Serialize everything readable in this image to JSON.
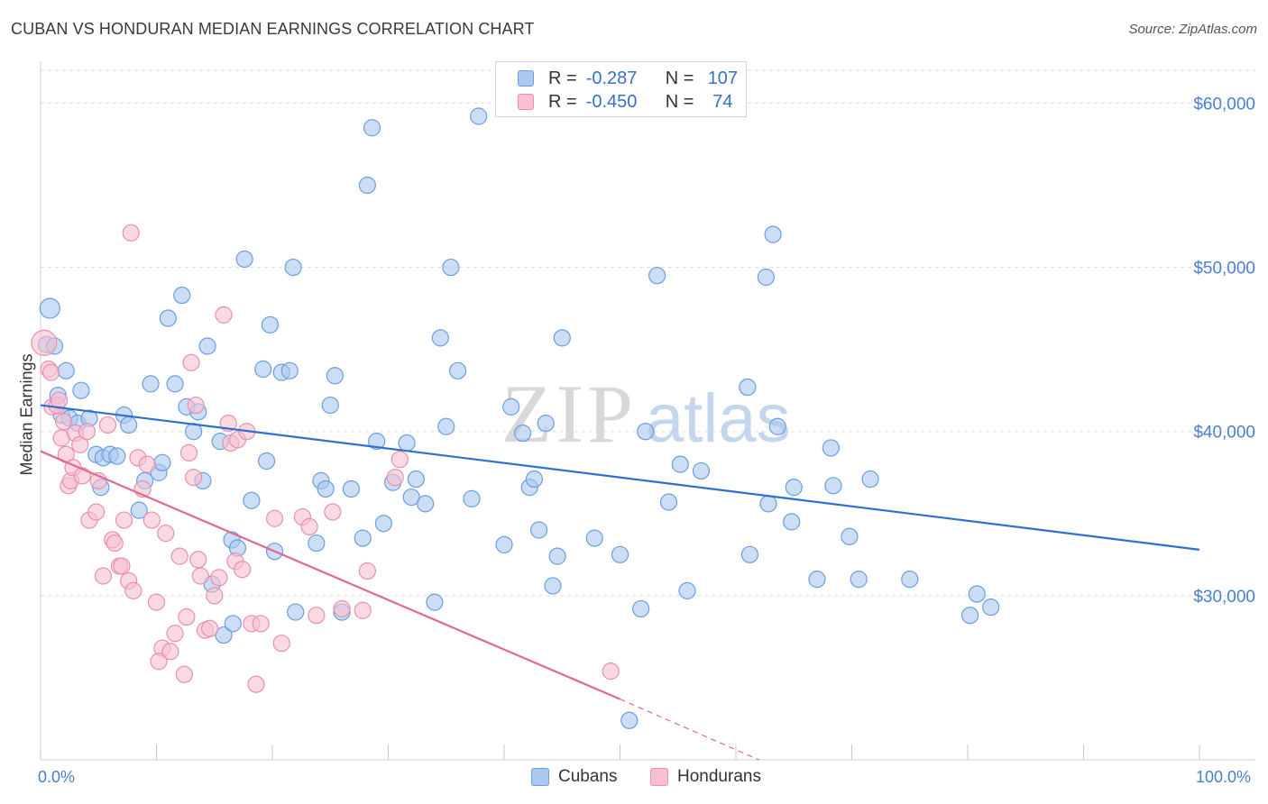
{
  "title": "CUBAN VS HONDURAN MEDIAN EARNINGS CORRELATION CHART",
  "source": "Source: ZipAtlas.com",
  "watermark": {
    "zip": "ZIP",
    "atlas": "atlas"
  },
  "legend_top": {
    "rows": [
      {
        "r_label": "R =",
        "r_value": "-0.287",
        "n_label": "N =",
        "n_value": "107"
      },
      {
        "r_label": "R =",
        "r_value": "-0.450",
        "n_label": "N =",
        "n_value": "74"
      }
    ]
  },
  "colors": {
    "cubans_fill": "#aac8f0",
    "cubans_stroke": "#6a9ee0",
    "cubans_line": "#2f6fd0",
    "hondurans_fill": "#f8c0d0",
    "hondurans_stroke": "#e890ae",
    "hondurans_line": "#e06892",
    "axis_text": "#4a7fd0",
    "grid": "#dddddd"
  },
  "chart_data": {
    "type": "scatter",
    "title": "CUBAN VS HONDURAN MEDIAN EARNINGS CORRELATION CHART",
    "xlabel": "",
    "ylabel": "Median Earnings",
    "xlim": [
      0,
      100
    ],
    "ylim": [
      20000,
      62000
    ],
    "x_tick_labels": [
      "0.0%",
      "100.0%"
    ],
    "y_ticks": [
      30000,
      40000,
      50000,
      60000
    ],
    "y_tick_labels": [
      "$30,000",
      "$40,000",
      "$50,000",
      "$60,000"
    ],
    "grid": true,
    "legend_position": "bottom-center",
    "series": [
      {
        "name": "Cubans",
        "r": -0.287,
        "n": 107,
        "trend": {
          "x": [
            0,
            100
          ],
          "y": [
            41600,
            32800
          ]
        },
        "points": [
          [
            0.5,
            45300
          ],
          [
            0.8,
            47500
          ],
          [
            1.2,
            45200
          ],
          [
            1.5,
            42200
          ],
          [
            2.2,
            43700
          ],
          [
            1.8,
            41000
          ],
          [
            2.5,
            40800
          ],
          [
            3.5,
            42500
          ],
          [
            3.2,
            40500
          ],
          [
            4.2,
            40800
          ],
          [
            4.8,
            38600
          ],
          [
            5.4,
            38400
          ],
          [
            6.0,
            38600
          ],
          [
            6.6,
            38500
          ],
          [
            5.2,
            36600
          ],
          [
            7.2,
            41000
          ],
          [
            7.6,
            40400
          ],
          [
            8.5,
            35200
          ],
          [
            9.0,
            37000
          ],
          [
            9.5,
            42900
          ],
          [
            10.2,
            37500
          ],
          [
            10.5,
            38100
          ],
          [
            11.0,
            46900
          ],
          [
            11.6,
            42900
          ],
          [
            12.2,
            48300
          ],
          [
            12.6,
            41500
          ],
          [
            13.2,
            40000
          ],
          [
            13.6,
            41200
          ],
          [
            14.0,
            37000
          ],
          [
            14.4,
            45200
          ],
          [
            14.8,
            30700
          ],
          [
            15.5,
            39400
          ],
          [
            15.8,
            27600
          ],
          [
            16.5,
            33400
          ],
          [
            16.6,
            28300
          ],
          [
            17.0,
            32900
          ],
          [
            17.6,
            50500
          ],
          [
            18.2,
            35800
          ],
          [
            19.2,
            43800
          ],
          [
            19.5,
            38200
          ],
          [
            19.8,
            46500
          ],
          [
            20.2,
            32700
          ],
          [
            20.8,
            43600
          ],
          [
            21.5,
            43700
          ],
          [
            21.8,
            50000
          ],
          [
            22.0,
            29000
          ],
          [
            23.8,
            33200
          ],
          [
            24.2,
            37000
          ],
          [
            24.6,
            36500
          ],
          [
            25.0,
            41600
          ],
          [
            25.4,
            43400
          ],
          [
            26.0,
            29000
          ],
          [
            26.8,
            36500
          ],
          [
            27.8,
            33500
          ],
          [
            28.2,
            55000
          ],
          [
            28.6,
            58500
          ],
          [
            29.0,
            39400
          ],
          [
            29.6,
            34400
          ],
          [
            30.4,
            36900
          ],
          [
            31.6,
            39300
          ],
          [
            32.0,
            36000
          ],
          [
            32.4,
            37100
          ],
          [
            33.2,
            35600
          ],
          [
            34.0,
            29600
          ],
          [
            34.5,
            45700
          ],
          [
            35.0,
            40300
          ],
          [
            35.4,
            50000
          ],
          [
            36.0,
            43700
          ],
          [
            37.2,
            35900
          ],
          [
            37.8,
            59200
          ],
          [
            40.0,
            33100
          ],
          [
            40.6,
            41500
          ],
          [
            41.6,
            39900
          ],
          [
            42.2,
            36600
          ],
          [
            42.6,
            37100
          ],
          [
            43.0,
            34000
          ],
          [
            43.6,
            40500
          ],
          [
            44.2,
            30600
          ],
          [
            44.6,
            32400
          ],
          [
            45.0,
            45700
          ],
          [
            47.8,
            33500
          ],
          [
            50.0,
            32500
          ],
          [
            51.8,
            29200
          ],
          [
            52.2,
            40000
          ],
          [
            53.2,
            49500
          ],
          [
            54.2,
            35700
          ],
          [
            55.2,
            38000
          ],
          [
            55.8,
            30300
          ],
          [
            57.0,
            37600
          ],
          [
            61.0,
            42700
          ],
          [
            61.2,
            32500
          ],
          [
            62.6,
            49400
          ],
          [
            62.8,
            35600
          ],
          [
            63.2,
            52000
          ],
          [
            63.6,
            40300
          ],
          [
            65.0,
            36600
          ],
          [
            64.8,
            34500
          ],
          [
            67.0,
            31000
          ],
          [
            68.2,
            39000
          ],
          [
            68.4,
            36700
          ],
          [
            69.8,
            33600
          ],
          [
            70.6,
            31000
          ],
          [
            71.6,
            37100
          ],
          [
            75.0,
            31000
          ],
          [
            80.2,
            28800
          ],
          [
            80.8,
            30100
          ],
          [
            82.0,
            29300
          ],
          [
            50.8,
            22400
          ]
        ]
      },
      {
        "name": "Hondurans",
        "r": -0.45,
        "n": 74,
        "trend": {
          "x": [
            0,
            50
          ],
          "y": [
            38800,
            23700
          ]
        },
        "trend_dashed": {
          "x": [
            50,
            62
          ],
          "y": [
            23700,
            20000
          ]
        },
        "points": [
          [
            0.3,
            45400
          ],
          [
            0.7,
            43800
          ],
          [
            0.9,
            43600
          ],
          [
            1.0,
            41500
          ],
          [
            1.4,
            41600
          ],
          [
            1.6,
            41900
          ],
          [
            2.0,
            40600
          ],
          [
            1.8,
            39600
          ],
          [
            2.2,
            38600
          ],
          [
            2.4,
            36700
          ],
          [
            2.6,
            37000
          ],
          [
            2.8,
            37800
          ],
          [
            3.0,
            39900
          ],
          [
            3.4,
            39200
          ],
          [
            3.6,
            37300
          ],
          [
            4.0,
            40000
          ],
          [
            4.2,
            34600
          ],
          [
            4.8,
            35100
          ],
          [
            5.0,
            37000
          ],
          [
            5.4,
            31200
          ],
          [
            5.8,
            40400
          ],
          [
            6.2,
            33400
          ],
          [
            6.4,
            33200
          ],
          [
            6.8,
            31800
          ],
          [
            7.0,
            31800
          ],
          [
            7.2,
            34600
          ],
          [
            7.6,
            30900
          ],
          [
            8.0,
            30300
          ],
          [
            8.4,
            38400
          ],
          [
            8.8,
            36500
          ],
          [
            7.8,
            52100
          ],
          [
            9.2,
            38000
          ],
          [
            9.6,
            34600
          ],
          [
            10.0,
            29600
          ],
          [
            10.5,
            26800
          ],
          [
            10.2,
            26000
          ],
          [
            10.8,
            33800
          ],
          [
            11.2,
            26600
          ],
          [
            11.6,
            27700
          ],
          [
            12.0,
            32400
          ],
          [
            12.4,
            25200
          ],
          [
            12.6,
            28700
          ],
          [
            12.8,
            38700
          ],
          [
            13.0,
            44200
          ],
          [
            13.2,
            37200
          ],
          [
            13.4,
            41600
          ],
          [
            13.6,
            32200
          ],
          [
            13.8,
            31200
          ],
          [
            14.2,
            27900
          ],
          [
            14.6,
            28000
          ],
          [
            15.0,
            30000
          ],
          [
            15.4,
            31100
          ],
          [
            15.8,
            47100
          ],
          [
            16.2,
            40500
          ],
          [
            16.4,
            39300
          ],
          [
            16.8,
            32100
          ],
          [
            17.0,
            39500
          ],
          [
            17.4,
            31600
          ],
          [
            17.8,
            40000
          ],
          [
            18.2,
            28300
          ],
          [
            18.6,
            24600
          ],
          [
            19.0,
            28300
          ],
          [
            20.2,
            34700
          ],
          [
            20.8,
            27100
          ],
          [
            22.6,
            34800
          ],
          [
            23.2,
            34200
          ],
          [
            23.8,
            28800
          ],
          [
            25.2,
            35100
          ],
          [
            26.0,
            29200
          ],
          [
            27.8,
            29100
          ],
          [
            28.2,
            31500
          ],
          [
            30.6,
            37200
          ],
          [
            31.0,
            38300
          ],
          [
            49.2,
            25400
          ]
        ]
      }
    ]
  },
  "legend_bottom": {
    "items": [
      "Cubans",
      "Hondurans"
    ]
  }
}
